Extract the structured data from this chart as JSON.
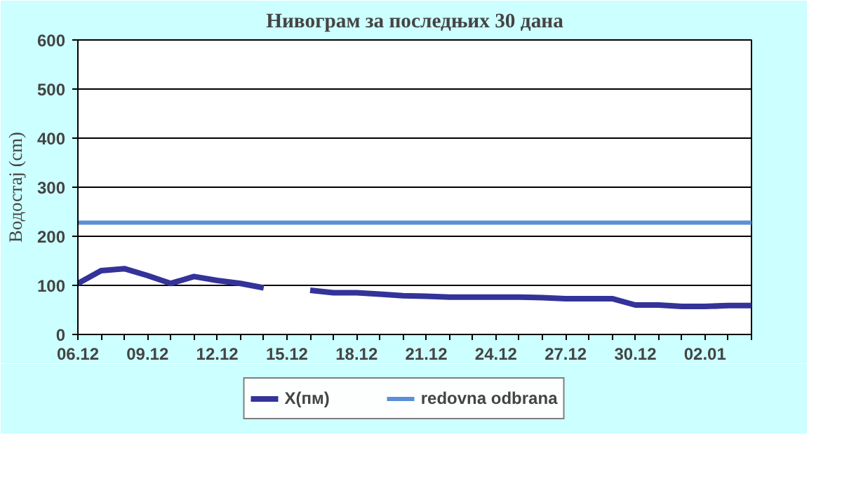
{
  "chart_data": {
    "type": "line",
    "title": "Нивограм за последњих 30 дана",
    "ylabel": "Водостај (cm)",
    "categories": [
      "06.12",
      null,
      null,
      "09.12",
      null,
      null,
      "12.12",
      null,
      null,
      "15.12",
      null,
      null,
      "18.12",
      null,
      null,
      "21.12",
      null,
      null,
      "24.12",
      null,
      null,
      "27.12",
      null,
      null,
      "30.12",
      null,
      null,
      "02.01",
      null,
      null
    ],
    "series": [
      {
        "name": "X(пм)",
        "color": "#333399",
        "values": [
          104,
          130,
          134,
          120,
          104,
          118,
          110,
          104,
          95,
          null,
          90,
          85,
          85,
          82,
          79,
          78,
          76,
          76,
          76,
          76,
          75,
          73,
          73,
          73,
          60,
          60,
          57,
          57,
          59,
          59
        ]
      }
    ],
    "ref_lines": [
      {
        "axis": "y",
        "value": 228,
        "label": "redovna odbrana",
        "color": "#5b8fd6"
      }
    ],
    "ylim": [
      0,
      600
    ],
    "yticks": [
      0,
      100,
      200,
      300,
      400,
      500,
      600
    ],
    "grid": "y",
    "legend": "bottom"
  }
}
